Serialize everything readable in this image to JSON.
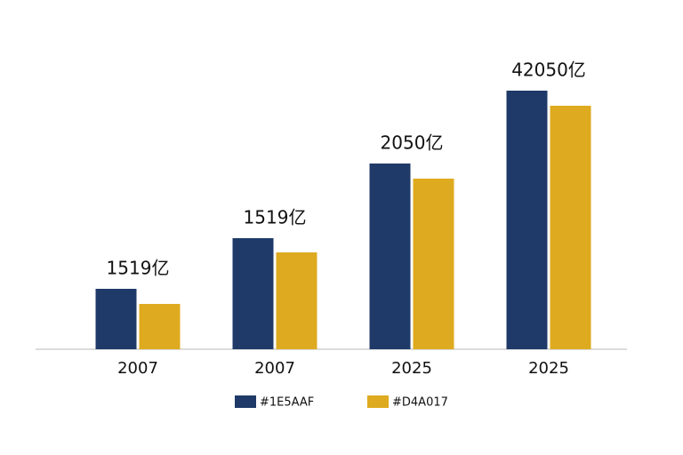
{
  "chart_data": {
    "type": "bar",
    "categories": [
      "2007",
      "2007",
      "2025",
      "2025"
    ],
    "series": [
      {
        "name": "#1E5AAF",
        "color": "#1f3a68",
        "values": [
          68,
          125,
          209,
          291
        ]
      },
      {
        "name": "#D4A017",
        "color": "#deaa1f",
        "values": [
          51,
          109,
          192,
          274
        ]
      }
    ],
    "annotations": [
      "1519亿",
      "1519亿",
      "2050亿",
      "42050亿"
    ],
    "ylim": [
      0,
      320
    ],
    "legend": "bottom"
  }
}
